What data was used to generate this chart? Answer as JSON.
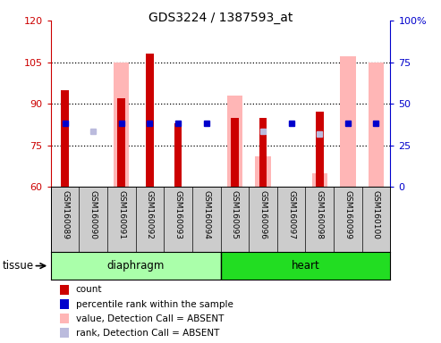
{
  "title": "GDS3224 / 1387593_at",
  "samples": [
    "GSM160089",
    "GSM160090",
    "GSM160091",
    "GSM160092",
    "GSM160093",
    "GSM160094",
    "GSM160095",
    "GSM160096",
    "GSM160097",
    "GSM160098",
    "GSM160099",
    "GSM160100"
  ],
  "ylim_left": [
    60,
    120
  ],
  "ylim_right": [
    0,
    100
  ],
  "yticks_left": [
    60,
    75,
    90,
    105,
    120
  ],
  "yticks_right": [
    0,
    25,
    50,
    75,
    100
  ],
  "count_values": [
    95,
    null,
    92,
    108,
    83,
    null,
    85,
    85,
    null,
    87,
    null,
    null
  ],
  "rank_values": [
    83,
    null,
    83,
    83,
    83,
    83,
    null,
    null,
    83,
    null,
    83,
    83
  ],
  "absent_value_bars": [
    null,
    null,
    105,
    null,
    null,
    null,
    93,
    71,
    null,
    65,
    107,
    105
  ],
  "absent_rank_dots": [
    null,
    80,
    null,
    null,
    null,
    null,
    null,
    80,
    null,
    79,
    null,
    null
  ],
  "count_color": "#CC0000",
  "rank_color": "#0000CC",
  "absent_value_color": "#FFB6B6",
  "absent_rank_color": "#BBBBDD",
  "left_axis_color": "#CC0000",
  "right_axis_color": "#0000CC",
  "diaphragm_color": "#AAFFAA",
  "heart_color": "#22DD22",
  "xtick_bg": "#CCCCCC",
  "legend_items": [
    {
      "label": "count",
      "color": "#CC0000"
    },
    {
      "label": "percentile rank within the sample",
      "color": "#0000CC"
    },
    {
      "label": "value, Detection Call = ABSENT",
      "color": "#FFB6B6"
    },
    {
      "label": "rank, Detection Call = ABSENT",
      "color": "#BBBBDD"
    }
  ]
}
